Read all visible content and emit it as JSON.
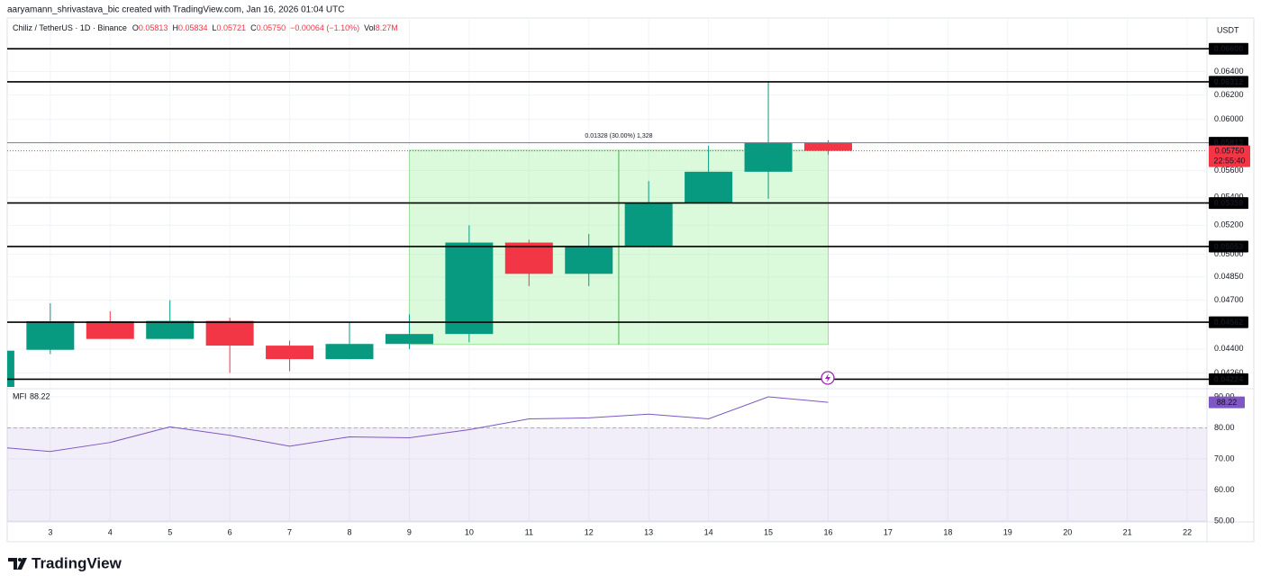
{
  "header": {
    "attribution": "aaryamann_shrivastava_bic created with TradingView.com, Jan 16, 2026 01:04 UTC"
  },
  "chart_data": {
    "type": "candlestick",
    "symbol": "Chiliz / TetherUS · 1D · Binance",
    "ohlc": [
      {
        "key": "O",
        "value": "0.05813"
      },
      {
        "key": "H",
        "value": "0.05834"
      },
      {
        "key": "L",
        "value": "0.05721"
      },
      {
        "key": "C",
        "value": "0.05750"
      }
    ],
    "change": "−0.00064 (−1.10%)",
    "vol_key": "Vol",
    "vol": "8.27M",
    "currency": "USDT",
    "x": [
      2,
      3,
      4,
      5,
      6,
      7,
      8,
      9,
      10,
      11,
      12,
      13,
      14,
      15,
      16
    ],
    "open": [
      0.0418,
      0.04395,
      0.04568,
      0.0446,
      0.0457,
      0.0442,
      0.0434,
      0.0443,
      0.0449,
      0.0508,
      0.0487,
      0.0505,
      0.0536,
      0.0559,
      0.05813
    ],
    "high": [
      0.044,
      0.0468,
      0.0463,
      0.047,
      0.0459,
      0.0445,
      0.0456,
      0.0461,
      0.052,
      0.051,
      0.0514,
      0.0552,
      0.0579,
      0.06312,
      0.05834
    ],
    "low": [
      0.0417,
      0.0437,
      0.0446,
      0.0446,
      0.0426,
      0.0427,
      0.0434,
      0.044,
      0.0444,
      0.0479,
      0.0479,
      0.0505,
      0.0536,
      0.0539,
      0.05721
    ],
    "close": [
      0.0439,
      0.04568,
      0.0446,
      0.0457,
      0.0442,
      0.0434,
      0.0443,
      0.0449,
      0.0508,
      0.0487,
      0.0505,
      0.0536,
      0.0559,
      0.05813,
      0.0575
    ],
    "up_color": "#089981",
    "down_color": "#f23645",
    "xlim": [
      2.28,
      22.33
    ],
    "xticks": [
      3,
      4,
      5,
      6,
      7,
      8,
      9,
      10,
      11,
      12,
      13,
      14,
      15,
      16,
      17,
      18,
      19,
      20,
      21,
      22
    ],
    "ylim": [
      0.0417,
      0.0688
    ],
    "log_scale": true,
    "grid": true,
    "yticks": [
      {
        "value": 0.0426,
        "label": "0.04260"
      },
      {
        "value": 0.044,
        "label": "0.04400"
      },
      {
        "value": 0.047,
        "label": "0.04700"
      },
      {
        "value": 0.0485,
        "label": "0.04850"
      },
      {
        "value": 0.05,
        "label": "0.05000"
      },
      {
        "value": 0.052,
        "label": "0.05200"
      },
      {
        "value": 0.054,
        "label": "0.05400"
      },
      {
        "value": 0.056,
        "label": "0.05600"
      },
      {
        "value": 0.06,
        "label": "0.06000"
      },
      {
        "value": 0.062,
        "label": "0.06200"
      },
      {
        "value": 0.064,
        "label": "0.06400"
      }
    ],
    "hlines": [
      {
        "value": 0.066,
        "label": "0.06600",
        "color": "#000000"
      },
      {
        "value": 0.06312,
        "label": "0.06312",
        "color": "#000000"
      },
      {
        "value": 0.05813,
        "label": "0.05813",
        "color": "#787b86"
      },
      {
        "value": 0.05359,
        "label": "0.05359",
        "color": "#000000"
      },
      {
        "value": 0.05053,
        "label": "0.05053",
        "color": "#000000"
      },
      {
        "value": 0.04562,
        "label": "0.04562",
        "color": "#000000"
      },
      {
        "value": 0.04224,
        "label": "0.04224",
        "color": "#000000"
      }
    ],
    "last_price": {
      "value": 0.0575,
      "label": "0.05750",
      "countdown": "22:55:40",
      "color": "#f23645"
    },
    "measure": {
      "label": "0.01328 (30.00%) 1,328",
      "from": 0.04427,
      "to": 0.05755,
      "x_from": 9,
      "x_to": 16
    }
  },
  "indicator": {
    "type": "line",
    "name": "MFI",
    "color": "#7e57c2",
    "x": [
      2,
      3,
      4,
      5,
      6,
      7,
      8,
      9,
      10,
      11,
      12,
      13,
      14,
      15,
      16
    ],
    "values": [
      74.0,
      72.4,
      75.3,
      80.3,
      77.6,
      74.1,
      77.1,
      76.8,
      79.4,
      82.9,
      83.2,
      84.4,
      82.9,
      90.0,
      88.22
    ],
    "ylim": [
      49.7,
      92.6
    ],
    "yticks": [
      {
        "value": 50,
        "label": "50.00"
      },
      {
        "value": 60,
        "label": "60.00"
      },
      {
        "value": 70,
        "label": "70.00"
      },
      {
        "value": 80,
        "label": "80.00"
      },
      {
        "value": 90,
        "label": "90.00"
      }
    ],
    "overbought": 80
  },
  "footer": {
    "brand": "TradingView"
  }
}
